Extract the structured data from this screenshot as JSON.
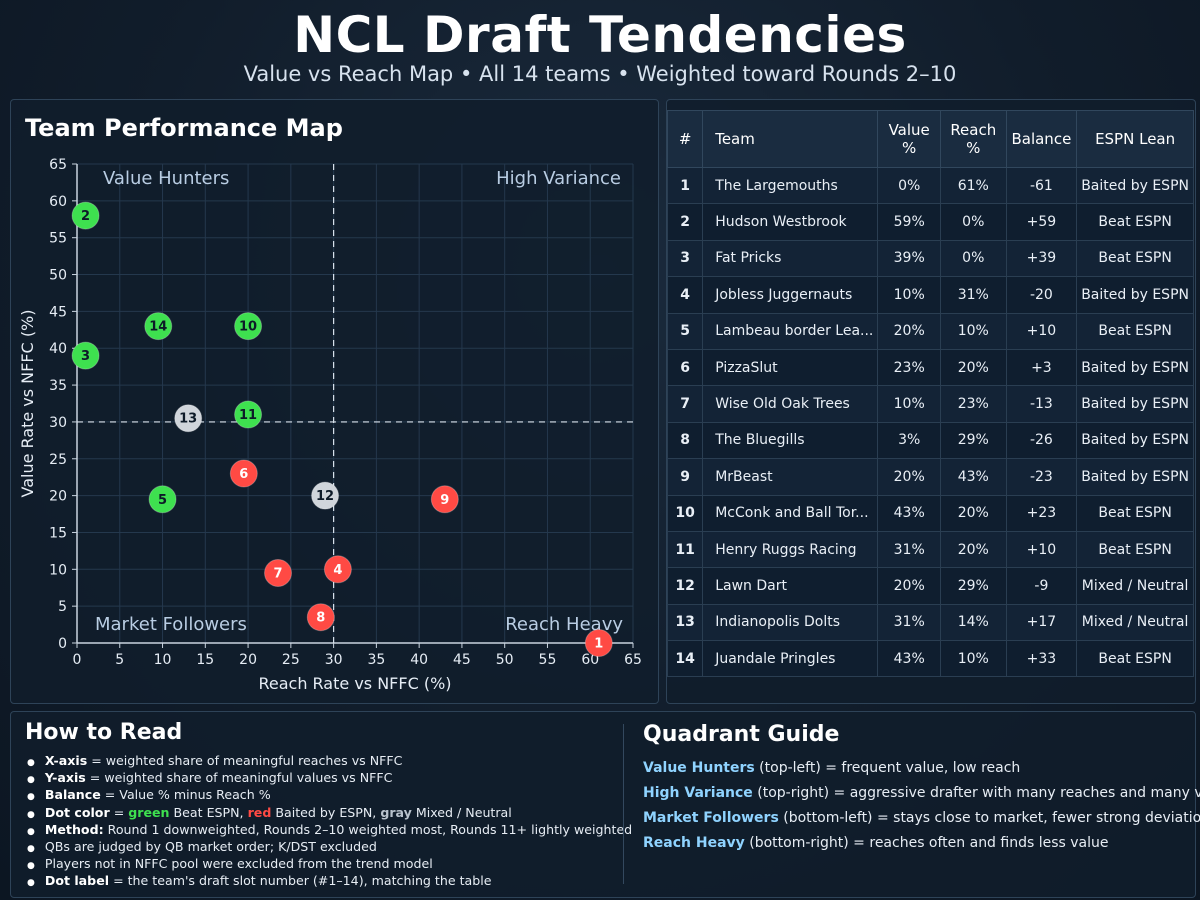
{
  "header": {
    "title": "NCL Draft Tendencies",
    "subtitle": "Value vs Reach Map • All 14 teams • Weighted toward Rounds 2–10"
  },
  "map": {
    "title": "Team Performance Map"
  },
  "colors": {
    "green": "#3ee04f",
    "red": "#ff4a44",
    "gray": "#d0d5db"
  },
  "chart_data": {
    "type": "scatter",
    "xlabel": "Reach Rate vs NFFC (%)",
    "ylabel": "Value Rate vs NFFC (%)",
    "xlim": [
      0,
      65
    ],
    "ylim": [
      0,
      65
    ],
    "xticks": [
      0,
      5,
      10,
      15,
      20,
      25,
      30,
      35,
      40,
      45,
      50,
      55,
      60,
      65
    ],
    "yticks": [
      0,
      5,
      10,
      15,
      20,
      25,
      30,
      35,
      40,
      45,
      50,
      55,
      60,
      65
    ],
    "grid": true,
    "reference_lines": {
      "x": 30,
      "y": 30
    },
    "quadrants": [
      {
        "label": "Value Hunters",
        "position": "top-left"
      },
      {
        "label": "High Variance",
        "position": "top-right"
      },
      {
        "label": "Market Followers",
        "position": "bottom-left"
      },
      {
        "label": "Reach Heavy",
        "position": "bottom-right"
      }
    ],
    "points": [
      {
        "label": "1",
        "x": 61,
        "y": 0,
        "color": "red"
      },
      {
        "label": "2",
        "x": 1,
        "y": 58,
        "color": "green"
      },
      {
        "label": "3",
        "x": 1,
        "y": 39,
        "color": "green"
      },
      {
        "label": "4",
        "x": 30.5,
        "y": 10,
        "color": "red"
      },
      {
        "label": "5",
        "x": 10,
        "y": 19.5,
        "color": "green"
      },
      {
        "label": "6",
        "x": 19.5,
        "y": 23,
        "color": "red"
      },
      {
        "label": "7",
        "x": 23.5,
        "y": 9.5,
        "color": "red"
      },
      {
        "label": "8",
        "x": 28.5,
        "y": 3.5,
        "color": "red"
      },
      {
        "label": "9",
        "x": 43,
        "y": 19.5,
        "color": "red"
      },
      {
        "label": "10",
        "x": 20,
        "y": 43,
        "color": "green"
      },
      {
        "label": "11",
        "x": 20,
        "y": 31,
        "color": "green"
      },
      {
        "label": "12",
        "x": 29,
        "y": 20,
        "color": "gray"
      },
      {
        "label": "13",
        "x": 13,
        "y": 30.5,
        "color": "gray"
      },
      {
        "label": "14",
        "x": 9.5,
        "y": 43,
        "color": "green"
      }
    ]
  },
  "table": {
    "headers": {
      "rank": "#",
      "team": "Team",
      "value": "Value %",
      "reach": "Reach %",
      "balance": "Balance",
      "lean": "ESPN Lean"
    },
    "rows": [
      {
        "rank": "1",
        "team": "The Largemouths",
        "value": "0%",
        "reach": "61%",
        "balance": "-61",
        "lean": "Baited by ESPN",
        "lean_color": "red"
      },
      {
        "rank": "2",
        "team": "Hudson Westbrook",
        "value": "59%",
        "reach": "0%",
        "balance": "+59",
        "lean": "Beat ESPN",
        "lean_color": "green"
      },
      {
        "rank": "3",
        "team": "Fat Pricks",
        "value": "39%",
        "reach": "0%",
        "balance": "+39",
        "lean": "Beat ESPN",
        "lean_color": "green"
      },
      {
        "rank": "4",
        "team": "Jobless Juggernauts",
        "value": "10%",
        "reach": "31%",
        "balance": "-20",
        "lean": "Baited by ESPN",
        "lean_color": "red"
      },
      {
        "rank": "5",
        "team": "Lambeau border Lea...",
        "value": "20%",
        "reach": "10%",
        "balance": "+10",
        "lean": "Beat ESPN",
        "lean_color": "green"
      },
      {
        "rank": "6",
        "team": "PizzaSlut",
        "value": "23%",
        "reach": "20%",
        "balance": "+3",
        "lean": "Baited by ESPN",
        "lean_color": "red"
      },
      {
        "rank": "7",
        "team": "Wise Old Oak Trees",
        "value": "10%",
        "reach": "23%",
        "balance": "-13",
        "lean": "Baited by ESPN",
        "lean_color": "red"
      },
      {
        "rank": "8",
        "team": "The Bluegills",
        "value": "3%",
        "reach": "29%",
        "balance": "-26",
        "lean": "Baited by ESPN",
        "lean_color": "red"
      },
      {
        "rank": "9",
        "team": "MrBeast",
        "value": "20%",
        "reach": "43%",
        "balance": "-23",
        "lean": "Baited by ESPN",
        "lean_color": "red"
      },
      {
        "rank": "10",
        "team": "McConk and Ball Tor...",
        "value": "43%",
        "reach": "20%",
        "balance": "+23",
        "lean": "Beat ESPN",
        "lean_color": "green"
      },
      {
        "rank": "11",
        "team": "Henry Ruggs Racing",
        "value": "31%",
        "reach": "20%",
        "balance": "+10",
        "lean": "Beat ESPN",
        "lean_color": "green"
      },
      {
        "rank": "12",
        "team": "Lawn Dart",
        "value": "20%",
        "reach": "29%",
        "balance": "-9",
        "lean": "Mixed / Neutral",
        "lean_color": "gray"
      },
      {
        "rank": "13",
        "team": "Indianopolis Dolts",
        "value": "31%",
        "reach": "14%",
        "balance": "+17",
        "lean": "Mixed / Neutral",
        "lean_color": "gray"
      },
      {
        "rank": "14",
        "team": "Juandale Pringles",
        "value": "43%",
        "reach": "10%",
        "balance": "+33",
        "lean": "Beat ESPN",
        "lean_color": "green"
      }
    ]
  },
  "how_to_read": {
    "title": "How to Read",
    "items": [
      {
        "bold": "X-axis",
        "text": " = weighted share of meaningful reaches vs NFFC"
      },
      {
        "bold": "Y-axis",
        "text": " = weighted share of meaningful values vs NFFC"
      },
      {
        "bold": "Balance",
        "text": " = Value % minus Reach %"
      },
      {
        "bold": "Dot color",
        "text": "= ",
        "green": "green",
        "t2": " Beat ESPN, ",
        "red": "red",
        "t3": " Baited by ESPN, ",
        "gray": "gray",
        "t4": " Mixed / Neutral"
      },
      {
        "bold": "Method:",
        "text": " Round 1 downweighted, Rounds 2–10 weighted most, Rounds 11+ lightly weighted"
      },
      {
        "bold": "",
        "text": "QBs are judged by QB market order; K/DST excluded"
      },
      {
        "bold": "",
        "text": "Players not in NFFC pool were excluded from the trend model"
      },
      {
        "bold": "Dot label",
        "text": " = the team's draft slot number (#1–14), matching the table"
      }
    ]
  },
  "quadrant_guide": {
    "title": "Quadrant Guide",
    "items": [
      {
        "name": "Value Hunters",
        "text": " (top-left) = frequent value, low reach"
      },
      {
        "name": "High Variance",
        "text": " (top-right) = aggressive drafter with many reaches and many values"
      },
      {
        "name": "Market Followers",
        "text": " (bottom-left) = stays close to market, fewer strong deviations"
      },
      {
        "name": "Reach Heavy",
        "text": " (bottom-right) = reaches often and finds less value"
      }
    ]
  }
}
